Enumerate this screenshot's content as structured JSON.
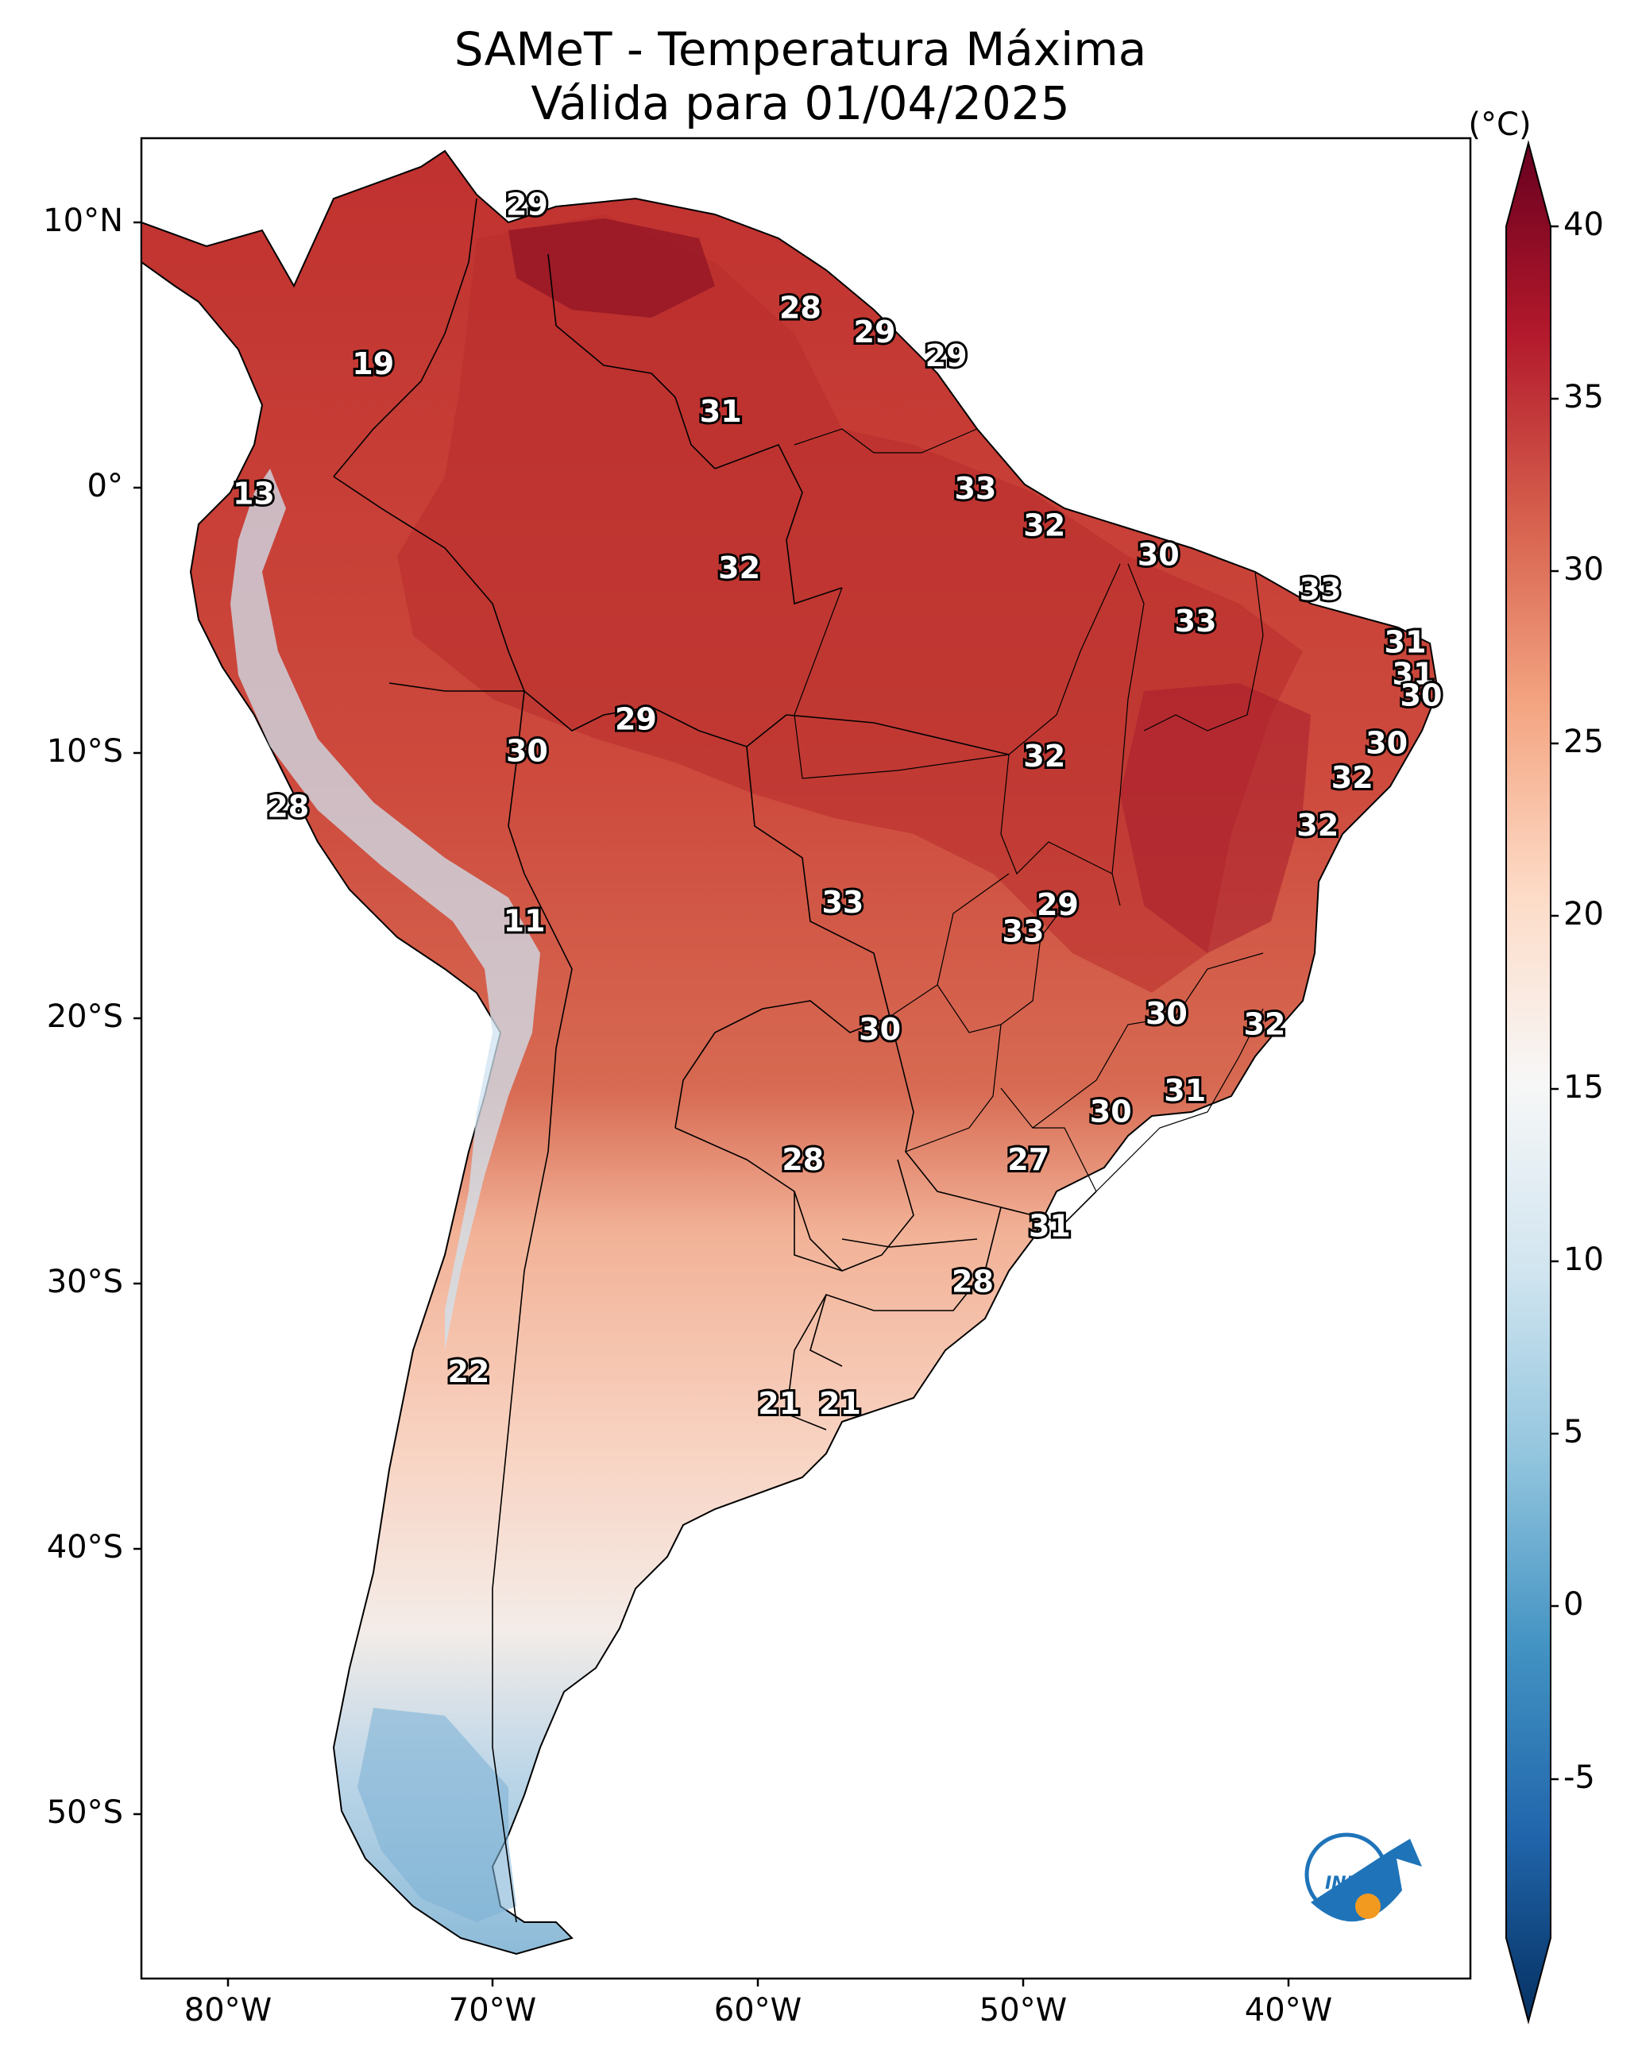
{
  "title": "SAMeT - Temperatura Máxima",
  "subtitle": "Válida para 01/04/2025",
  "colorbar": {
    "unit": "(°C)",
    "ticks": [
      "40",
      "35",
      "30",
      "25",
      "20",
      "15",
      "10",
      "5",
      "0",
      "-5"
    ],
    "stops": [
      "#67001f",
      "#b2182b",
      "#d6604d",
      "#f4a582",
      "#fddbc7",
      "#f7f7f7",
      "#d1e5f0",
      "#92c5de",
      "#4393c3",
      "#2166ac",
      "#053061"
    ]
  },
  "axes": {
    "lat_labels": [
      "10°N",
      "0°",
      "10°S",
      "20°S",
      "30°S",
      "40°S",
      "50°S"
    ],
    "lon_labels": [
      "80°W",
      "70°W",
      "60°W",
      "50°W",
      "40°W"
    ]
  },
  "map_labels": [
    {
      "value": "29",
      "lon": -68.7,
      "lat": 10.6
    },
    {
      "value": "28",
      "lon": -58.4,
      "lat": 6.7
    },
    {
      "value": "29",
      "lon": -55.6,
      "lat": 5.8
    },
    {
      "value": "29",
      "lon": -52.9,
      "lat": 4.9
    },
    {
      "value": "19",
      "lon": -74.5,
      "lat": 4.6
    },
    {
      "value": "31",
      "lon": -61.4,
      "lat": 2.8
    },
    {
      "value": "13",
      "lon": -79.0,
      "lat": -0.3
    },
    {
      "value": "33",
      "lon": -51.8,
      "lat": -0.1
    },
    {
      "value": "32",
      "lon": -49.2,
      "lat": -1.5
    },
    {
      "value": "30",
      "lon": -44.9,
      "lat": -2.6
    },
    {
      "value": "33",
      "lon": -38.8,
      "lat": -3.9
    },
    {
      "value": "32",
      "lon": -60.7,
      "lat": -3.1
    },
    {
      "value": "33",
      "lon": -43.5,
      "lat": -5.1
    },
    {
      "value": "31",
      "lon": -35.6,
      "lat": -5.9
    },
    {
      "value": "31",
      "lon": -35.3,
      "lat": -7.1
    },
    {
      "value": "30",
      "lon": -35.0,
      "lat": -7.9
    },
    {
      "value": "29",
      "lon": -64.6,
      "lat": -8.8
    },
    {
      "value": "30",
      "lon": -68.7,
      "lat": -10.0
    },
    {
      "value": "32",
      "lon": -49.2,
      "lat": -10.2
    },
    {
      "value": "30",
      "lon": -36.3,
      "lat": -9.7
    },
    {
      "value": "32",
      "lon": -37.6,
      "lat": -11.0
    },
    {
      "value": "28",
      "lon": -77.7,
      "lat": -12.1
    },
    {
      "value": "32",
      "lon": -38.9,
      "lat": -12.8
    },
    {
      "value": "33",
      "lon": -56.8,
      "lat": -15.7
    },
    {
      "value": "29",
      "lon": -48.7,
      "lat": -15.8
    },
    {
      "value": "33",
      "lon": -50.0,
      "lat": -16.8
    },
    {
      "value": "11",
      "lon": -68.8,
      "lat": -16.4
    },
    {
      "value": "30",
      "lon": -44.6,
      "lat": -19.9
    },
    {
      "value": "32",
      "lon": -40.9,
      "lat": -20.3
    },
    {
      "value": "30",
      "lon": -55.4,
      "lat": -20.5
    },
    {
      "value": "31",
      "lon": -43.9,
      "lat": -22.8
    },
    {
      "value": "30",
      "lon": -46.7,
      "lat": -23.6
    },
    {
      "value": "28",
      "lon": -58.3,
      "lat": -25.4
    },
    {
      "value": "27",
      "lon": -49.8,
      "lat": -25.4
    },
    {
      "value": "31",
      "lon": -49.0,
      "lat": -27.9
    },
    {
      "value": "28",
      "lon": -51.9,
      "lat": -30.0
    },
    {
      "value": "22",
      "lon": -70.9,
      "lat": -33.4
    },
    {
      "value": "21",
      "lon": -59.2,
      "lat": -34.6
    },
    {
      "value": "21",
      "lon": -56.9,
      "lat": -34.6
    }
  ]
}
